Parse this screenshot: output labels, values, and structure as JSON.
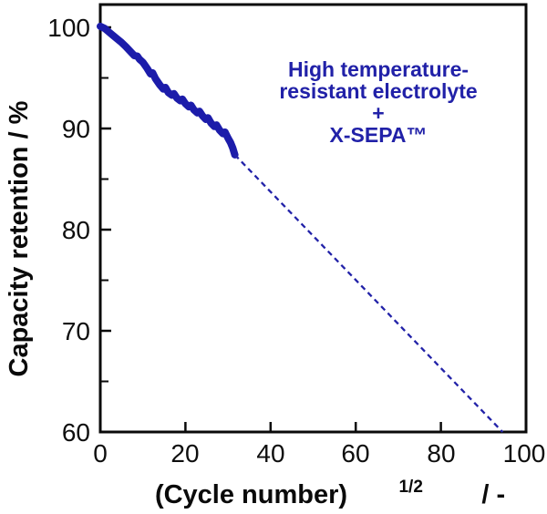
{
  "chart_data": {
    "type": "line",
    "title": "",
    "xlabel": {
      "base": "(Cycle number)",
      "superscript": "1/2",
      "suffix": " / -"
    },
    "ylabel": "Capacity retention / %",
    "xlim": [
      0,
      100
    ],
    "ylim": [
      60,
      100
    ],
    "xticks": [
      0,
      20,
      40,
      60,
      80,
      100
    ],
    "xtick_labels": [
      "0",
      "20",
      "40",
      "60",
      "80",
      "100"
    ],
    "yticks": [
      100,
      90,
      80,
      70,
      60
    ],
    "ytick_labels": [
      "100",
      "90",
      "80",
      "70",
      "60"
    ],
    "yticks_minor": [
      95,
      85,
      75,
      65
    ],
    "grid": false,
    "axis_color": "#0a0a0a",
    "series": [
      {
        "name": "measured-capacity-retention",
        "line_style": "solid",
        "color": "#1c1caa",
        "stroke_width": 8,
        "points": [
          [
            0,
            100.1
          ],
          [
            1,
            99.9
          ],
          [
            2,
            99.55
          ],
          [
            3,
            99.2
          ],
          [
            4,
            98.85
          ],
          [
            5,
            98.5
          ],
          [
            6,
            98.1
          ],
          [
            7,
            97.65
          ],
          [
            8,
            97.2
          ],
          [
            8.7,
            97.15
          ],
          [
            9.2,
            96.85
          ],
          [
            10,
            96.55
          ],
          [
            11,
            95.95
          ],
          [
            11.8,
            95.4
          ],
          [
            12.3,
            95.5
          ],
          [
            13,
            94.9
          ],
          [
            14,
            94.3
          ],
          [
            14.8,
            93.9
          ],
          [
            15.3,
            94.05
          ],
          [
            16,
            93.55
          ],
          [
            16.8,
            93.3
          ],
          [
            17.3,
            93.45
          ],
          [
            18,
            93.0
          ],
          [
            18.8,
            92.75
          ],
          [
            19.3,
            92.9
          ],
          [
            20,
            92.45
          ],
          [
            20.8,
            92.15
          ],
          [
            21.3,
            92.3
          ],
          [
            22,
            91.85
          ],
          [
            22.8,
            91.55
          ],
          [
            23.3,
            91.7
          ],
          [
            24,
            91.25
          ],
          [
            24.8,
            90.9
          ],
          [
            25.3,
            91.05
          ],
          [
            26,
            90.55
          ],
          [
            26.8,
            90.2
          ],
          [
            27.3,
            90.35
          ],
          [
            28,
            89.85
          ],
          [
            28.8,
            89.5
          ],
          [
            29.3,
            89.65
          ],
          [
            30,
            89.05
          ],
          [
            30.6,
            88.6
          ],
          [
            31.1,
            88.1
          ],
          [
            31.6,
            87.4
          ]
        ]
      },
      {
        "name": "extrapolated-trend",
        "line_style": "dashed",
        "color": "#2222a8",
        "stroke_width": 2.3,
        "dash": "6 4.5",
        "points": [
          [
            31.6,
            87.4
          ],
          [
            94.5,
            60.0
          ]
        ]
      }
    ],
    "annotation": {
      "color": "#2121a8",
      "lines": [
        "High temperature-",
        "resistant electrolyte",
        "+",
        "X-SEPA™"
      ]
    }
  }
}
